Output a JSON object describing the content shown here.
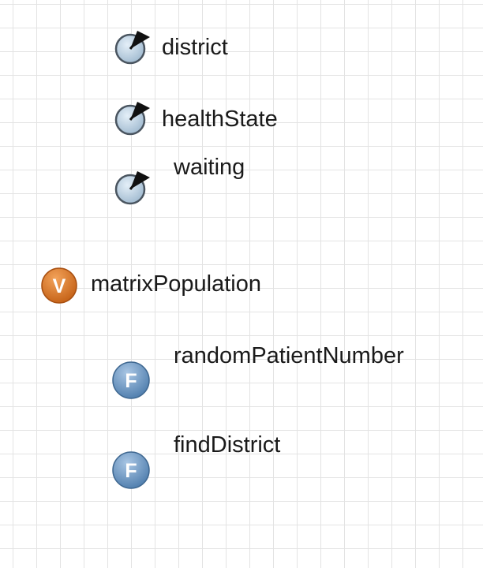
{
  "canvas": {
    "grid": true
  },
  "elements": {
    "district": {
      "type": "parameter",
      "icon": "parameter-dial-icon",
      "label": "district"
    },
    "healthState": {
      "type": "parameter",
      "icon": "parameter-dial-icon",
      "label": "healthState"
    },
    "waiting": {
      "type": "parameter",
      "icon": "parameter-dial-icon",
      "label": "waiting"
    },
    "matrixPopulation": {
      "type": "variable",
      "icon": "variable-v-icon",
      "badge": "V",
      "label": "matrixPopulation",
      "color": "#d8731f"
    },
    "randomPatientNumber": {
      "type": "function",
      "icon": "function-f-icon",
      "badge": "F",
      "label": "randomPatientNumber",
      "color": "#5d8cbc"
    },
    "findDistrict": {
      "type": "function",
      "icon": "function-f-icon",
      "badge": "F",
      "label": "findDistrict",
      "color": "#5d8cbc"
    }
  },
  "colors": {
    "grid": "#e3e3e3",
    "parameter_fill": "#c7dbea",
    "arrow": "#111111"
  }
}
